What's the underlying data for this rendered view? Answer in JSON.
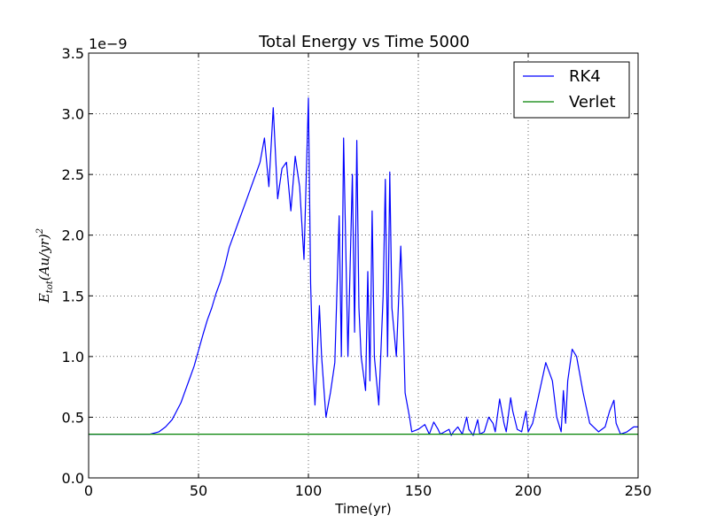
{
  "chart_data": {
    "type": "line",
    "title": "Total Energy vs Time  5000",
    "xlabel": "Time(yr)",
    "ylabel_main": "E",
    "ylabel_sub": "tot",
    "ylabel_rest": "(Au/yr)",
    "ylabel_sup": "2",
    "y_multiplier": "1e−9",
    "xlim": [
      0,
      250
    ],
    "ylim": [
      0.0,
      3.5
    ],
    "x_ticks": [
      0,
      50,
      100,
      150,
      200,
      250
    ],
    "x_tick_labels": [
      "0",
      "50",
      "100",
      "150",
      "200",
      "250"
    ],
    "y_ticks": [
      0.0,
      0.5,
      1.0,
      1.5,
      2.0,
      2.5,
      3.0,
      3.5
    ],
    "y_tick_labels": [
      "0.0",
      "0.5",
      "1.0",
      "1.5",
      "2.0",
      "2.5",
      "3.0",
      "3.5"
    ],
    "grid": true,
    "legend_position": "top-right",
    "series": [
      {
        "name": "RK4",
        "color": "#0000ff",
        "x": [
          0,
          10,
          20,
          28,
          32,
          35,
          38,
          40,
          42,
          44,
          46,
          48,
          50,
          52,
          54,
          56,
          58,
          60,
          62,
          64,
          66,
          68,
          70,
          72,
          74,
          76,
          78,
          80,
          82,
          84,
          86,
          88,
          90,
          92,
          94,
          96,
          98,
          100,
          101,
          102,
          103,
          104,
          105,
          106,
          108,
          110,
          112,
          114,
          115,
          116,
          118,
          120,
          121,
          122,
          123,
          124,
          126,
          127,
          128,
          129,
          130,
          132,
          134,
          135,
          136,
          137,
          138,
          140,
          142,
          143,
          144,
          146,
          147,
          150,
          153,
          155,
          157,
          159,
          160,
          162,
          164,
          165,
          166,
          168,
          170,
          172,
          173,
          175,
          177,
          178,
          180,
          182,
          184,
          185,
          187,
          189,
          190,
          192,
          193,
          195,
          197,
          199,
          200,
          202,
          205,
          208,
          211,
          213,
          215,
          216,
          217,
          218,
          220,
          222,
          225,
          228,
          232,
          235,
          237,
          239,
          240,
          242,
          245,
          248,
          250
        ],
        "y": [
          0.36,
          0.36,
          0.36,
          0.36,
          0.38,
          0.42,
          0.48,
          0.55,
          0.62,
          0.72,
          0.82,
          0.92,
          1.05,
          1.18,
          1.3,
          1.4,
          1.52,
          1.62,
          1.75,
          1.9,
          2.0,
          2.1,
          2.2,
          2.3,
          2.4,
          2.5,
          2.6,
          2.8,
          2.4,
          3.05,
          2.3,
          2.55,
          2.6,
          2.2,
          2.65,
          2.4,
          1.8,
          3.13,
          1.6,
          0.95,
          0.6,
          1.0,
          1.42,
          1.0,
          0.5,
          0.7,
          0.95,
          2.16,
          1.0,
          2.8,
          1.0,
          2.5,
          1.2,
          2.78,
          1.4,
          1.0,
          0.72,
          1.7,
          0.8,
          2.2,
          1.0,
          0.6,
          1.5,
          2.46,
          1.0,
          2.52,
          1.4,
          1.0,
          1.91,
          1.4,
          0.7,
          0.5,
          0.38,
          0.4,
          0.44,
          0.36,
          0.46,
          0.4,
          0.36,
          0.38,
          0.4,
          0.35,
          0.38,
          0.42,
          0.36,
          0.5,
          0.4,
          0.35,
          0.48,
          0.36,
          0.38,
          0.5,
          0.45,
          0.38,
          0.65,
          0.45,
          0.38,
          0.66,
          0.55,
          0.4,
          0.38,
          0.55,
          0.38,
          0.45,
          0.7,
          0.95,
          0.8,
          0.5,
          0.38,
          0.72,
          0.45,
          0.8,
          1.06,
          1.0,
          0.7,
          0.45,
          0.38,
          0.42,
          0.55,
          0.64,
          0.45,
          0.36,
          0.38,
          0.42,
          0.42
        ]
      },
      {
        "name": "Verlet",
        "color": "#008000",
        "x": [
          0,
          250
        ],
        "y": [
          0.36,
          0.36
        ]
      }
    ]
  }
}
